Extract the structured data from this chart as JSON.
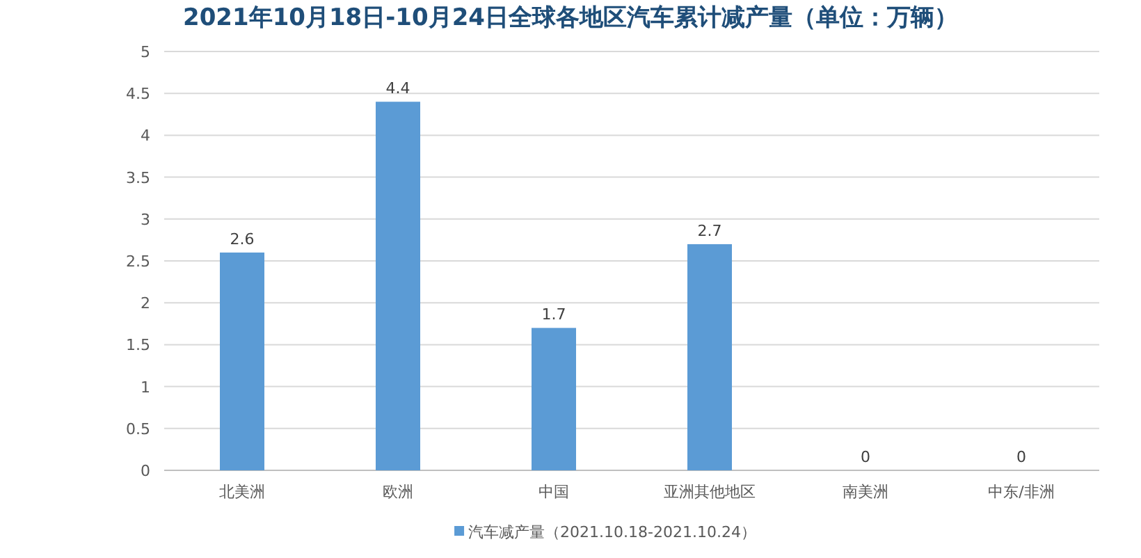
{
  "chart_data": {
    "type": "bar",
    "title": "2021年10月18日-10月24日全球各地区汽车累计减产量（单位：万辆）",
    "categories": [
      "北美洲",
      "欧洲",
      "中国",
      "亚洲其他地区",
      "南美洲",
      "中东/非洲"
    ],
    "series": [
      {
        "name": "汽车减产量（2021.10.18-2021.10.24）",
        "color": "#5b9bd5",
        "values": [
          2.6,
          4.4,
          1.7,
          2.7,
          0,
          0
        ]
      }
    ],
    "ylim": [
      0,
      5
    ],
    "yticks": [
      0,
      0.5,
      1,
      1.5,
      2,
      2.5,
      3,
      3.5,
      4,
      4.5,
      5
    ],
    "grid": "y",
    "legend": "bottom",
    "data_labels": true
  }
}
